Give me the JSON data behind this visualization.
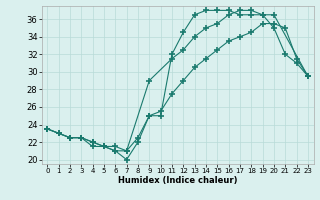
{
  "xlabel": "Humidex (Indice chaleur)",
  "background_color": "#daf0ee",
  "line_color": "#1a7a6e",
  "xlim": [
    -0.5,
    23.5
  ],
  "ylim": [
    19.5,
    37.5
  ],
  "xticks": [
    0,
    1,
    2,
    3,
    4,
    5,
    6,
    7,
    8,
    9,
    10,
    11,
    12,
    13,
    14,
    15,
    16,
    17,
    18,
    19,
    20,
    21,
    22,
    23
  ],
  "yticks": [
    20,
    22,
    24,
    26,
    28,
    30,
    32,
    34,
    36
  ],
  "line1_x": [
    0,
    1,
    2,
    3,
    4,
    5,
    6,
    7,
    8,
    9,
    10,
    11,
    12,
    13,
    14,
    15,
    16,
    17,
    18,
    19,
    20,
    21,
    22,
    23
  ],
  "line1_y": [
    23.5,
    23.0,
    22.5,
    22.5,
    21.5,
    21.5,
    21.0,
    20.0,
    22.0,
    25.0,
    25.0,
    32.0,
    34.5,
    36.5,
    37.0,
    37.0,
    37.0,
    36.5,
    36.5,
    36.5,
    35.0,
    32.0,
    31.0,
    29.5
  ],
  "line2_x": [
    0,
    1,
    2,
    3,
    4,
    5,
    6,
    7,
    9,
    11,
    12,
    13,
    14,
    15,
    16,
    17,
    18,
    19,
    20,
    23
  ],
  "line2_y": [
    23.5,
    23.0,
    22.5,
    22.5,
    22.0,
    21.5,
    21.0,
    21.0,
    29.0,
    31.5,
    32.5,
    34.0,
    35.0,
    35.5,
    36.5,
    37.0,
    37.0,
    36.5,
    36.5,
    29.5
  ],
  "line3_x": [
    0,
    2,
    3,
    4,
    5,
    6,
    7,
    8,
    9,
    10,
    11,
    12,
    13,
    14,
    15,
    16,
    17,
    18,
    19,
    20,
    21,
    22,
    23
  ],
  "line3_y": [
    23.5,
    22.5,
    22.5,
    22.0,
    21.5,
    21.5,
    21.0,
    22.5,
    25.0,
    25.5,
    27.5,
    29.0,
    30.5,
    31.5,
    32.5,
    33.5,
    34.0,
    34.5,
    35.5,
    35.5,
    35.0,
    31.5,
    29.5
  ],
  "grid_color": "#b8dbd8",
  "spine_color": "#aaaaaa"
}
